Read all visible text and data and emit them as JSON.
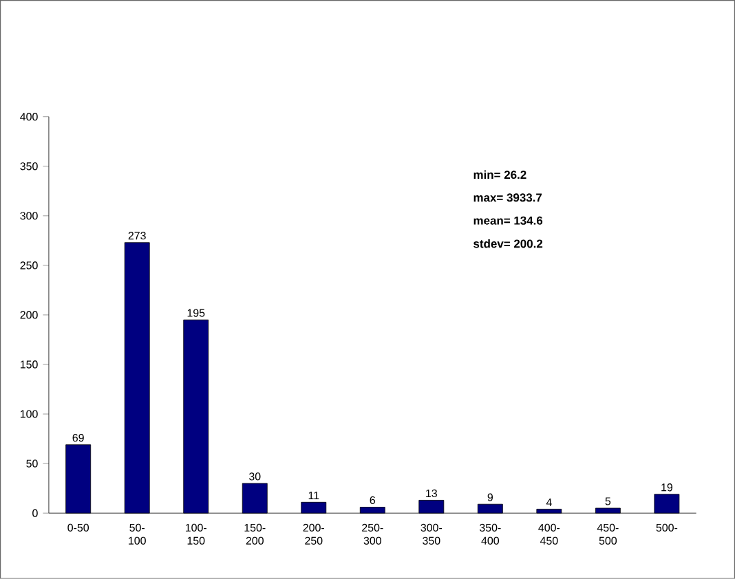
{
  "chart_data": {
    "type": "bar",
    "categories": [
      "0-50",
      "50-100",
      "100-150",
      "150-200",
      "200-250",
      "250-300",
      "300-350",
      "350-400",
      "400-450",
      "450-500",
      "500-"
    ],
    "values": [
      69,
      273,
      195,
      30,
      11,
      6,
      13,
      9,
      4,
      5,
      19
    ],
    "color": "#000080",
    "ylim": [
      0,
      400
    ],
    "yticks": [
      0,
      50,
      100,
      150,
      200,
      250,
      300,
      350,
      400
    ],
    "data_labels": true,
    "annotations": [
      "min= 26.2",
      "max= 3933.7",
      "mean= 134.6",
      "stdev= 200.2"
    ]
  }
}
